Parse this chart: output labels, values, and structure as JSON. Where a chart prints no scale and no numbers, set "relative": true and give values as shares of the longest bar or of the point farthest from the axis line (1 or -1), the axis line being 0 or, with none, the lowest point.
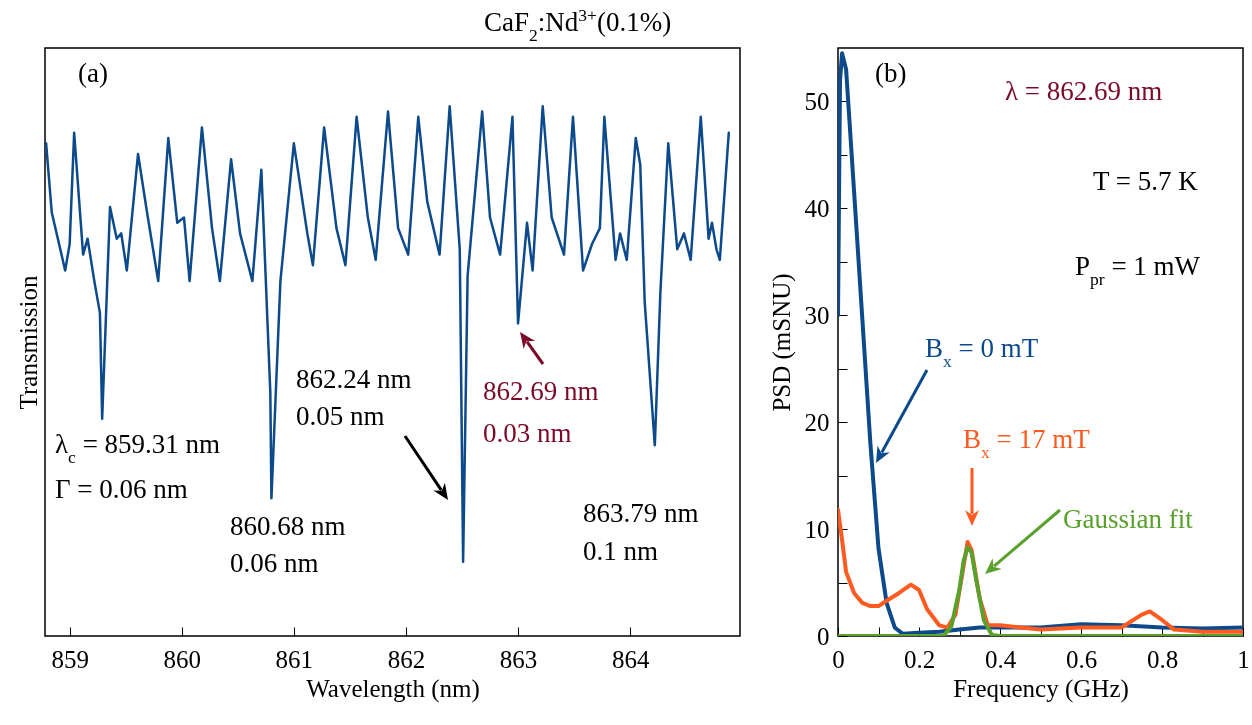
{
  "chart_data": [
    {
      "type": "line",
      "title": "CaF$_{2}$:Nd$^{3+}$(0.1%)",
      "xlabel": "Wavelength (nm)",
      "ylabel": "Transmission",
      "relative": true,
      "xlim": [
        858.78,
        864.98
      ],
      "xticks": [
        859,
        860,
        861,
        862,
        863,
        864
      ],
      "marker": "none",
      "line_style": "solid",
      "x": [
        858.79,
        858.84,
        858.96,
        859.0,
        859.04,
        859.12,
        859.16,
        859.22,
        859.27,
        859.29,
        859.36,
        859.42,
        859.46,
        859.51,
        859.61,
        859.69,
        859.79,
        859.88,
        859.96,
        860.02,
        860.07,
        860.18,
        860.27,
        860.34,
        860.44,
        860.52,
        860.63,
        860.71,
        860.79,
        860.8,
        860.88,
        861.0,
        861.12,
        861.17,
        861.27,
        861.38,
        861.46,
        861.56,
        861.66,
        861.73,
        861.84,
        861.93,
        862.02,
        862.11,
        862.19,
        862.3,
        862.39,
        862.48,
        862.51,
        862.55,
        862.68,
        862.75,
        862.84,
        862.95,
        863.0,
        863.08,
        863.13,
        863.22,
        863.3,
        863.41,
        863.49,
        863.58,
        863.66,
        863.73,
        863.77,
        863.87,
        863.91,
        863.97,
        864.05,
        864.09,
        864.13,
        864.22,
        864.27,
        864.34,
        864.42,
        864.48,
        864.54,
        864.63,
        864.7,
        864.73,
        864.77,
        864.8,
        864.88
      ],
      "series": [
        {
          "color": "#0d4a8c",
          "values": [
            0.93,
            0.8,
            0.69,
            0.74,
            0.95,
            0.72,
            0.75,
            0.67,
            0.61,
            0.41,
            0.81,
            0.75,
            0.76,
            0.69,
            0.91,
            0.8,
            0.67,
            0.94,
            0.78,
            0.79,
            0.67,
            0.96,
            0.77,
            0.67,
            0.9,
            0.76,
            0.67,
            0.88,
            0.46,
            0.26,
            0.67,
            0.93,
            0.76,
            0.7,
            0.96,
            0.77,
            0.7,
            0.98,
            0.79,
            0.71,
            0.99,
            0.77,
            0.72,
            0.98,
            0.82,
            0.72,
            1.0,
            0.73,
            0.14,
            0.68,
            0.99,
            0.79,
            0.72,
            0.98,
            0.59,
            0.78,
            0.69,
            1.0,
            0.79,
            0.72,
            0.98,
            0.69,
            0.74,
            0.77,
            0.98,
            0.71,
            0.76,
            0.71,
            0.94,
            0.89,
            0.63,
            0.36,
            0.65,
            0.93,
            0.73,
            0.76,
            0.71,
            0.98,
            0.75,
            0.78,
            0.73,
            0.71,
            0.95
          ]
        }
      ],
      "annotations": [
        "(a)",
        "λ$_{c}$ = 859.31 nm",
        "Γ = 0.06 nm",
        "860.68 nm",
        "0.06 nm",
        "862.24 nm",
        "0.05 nm",
        "862.69 nm",
        "0.03 nm",
        "863.79 nm",
        "0.1 nm"
      ]
    },
    {
      "type": "line",
      "xlabel": "Frequency (GHz)",
      "ylabel": "PSD (mSNU)",
      "xlim": [
        0,
        1
      ],
      "ylim": [
        0,
        55
      ],
      "xticks": [
        0,
        {
          "value": 0.1,
          "label": null
        },
        0.2,
        {
          "value": 0.3,
          "label": null
        },
        0.4,
        {
          "value": 0.5,
          "label": null
        },
        0.6,
        {
          "value": 0.7,
          "label": null
        },
        0.8,
        {
          "value": 0.9,
          "label": null
        },
        1
      ],
      "yticks": [
        0,
        {
          "value": 5,
          "label": null
        },
        10,
        {
          "value": 15,
          "label": null
        },
        20,
        {
          "value": 25,
          "label": null
        },
        30,
        {
          "value": 35,
          "label": null
        },
        40,
        {
          "value": 45,
          "label": null
        },
        50
      ],
      "marker": "none",
      "line_style": "solid",
      "series": [
        {
          "name": "B$_{x}$ = 0 mT",
          "color": "#0d4a8c",
          "x": [
            0,
            0.005,
            0.01,
            0.02,
            0.04,
            0.06,
            0.08,
            0.1,
            0.12,
            0.14,
            0.16,
            0.2,
            0.25,
            0.3,
            0.35,
            0.4,
            0.5,
            0.6,
            0.7,
            0.8,
            0.9,
            1.0
          ],
          "values": [
            30,
            52,
            54.5,
            53,
            41.4,
            29.7,
            18,
            8.2,
            3.1,
            0.8,
            0.2,
            0.3,
            0.4,
            0.6,
            0.8,
            0.8,
            0.8,
            1.1,
            1.0,
            0.8,
            0.7,
            0.8
          ]
        },
        {
          "name": "B$_{x}$ = 17 mT",
          "color": "#ff5a1f",
          "x": [
            0,
            0.01,
            0.02,
            0.04,
            0.06,
            0.08,
            0.1,
            0.12,
            0.15,
            0.18,
            0.2,
            0.22,
            0.25,
            0.27,
            0.29,
            0.31,
            0.32,
            0.33,
            0.35,
            0.37,
            0.4,
            0.5,
            0.6,
            0.7,
            0.75,
            0.77,
            0.8,
            0.83,
            0.9,
            1.0
          ],
          "values": [
            11.8,
            9,
            6,
            4,
            3.1,
            2.8,
            2.8,
            3.3,
            4,
            4.8,
            4.3,
            2.5,
            1,
            0.8,
            2,
            6.5,
            8.8,
            8,
            3.5,
            1,
            1,
            0.6,
            0.8,
            0.8,
            2,
            2.3,
            1.5,
            0.6,
            0.4,
            0.4
          ]
        },
        {
          "name": "Gaussian fit",
          "color": "#5aa02c",
          "x": [
            0,
            0.26,
            0.28,
            0.3,
            0.31,
            0.32,
            0.33,
            0.34,
            0.36,
            0.38,
            0.4,
            1.0
          ],
          "values": [
            0,
            0,
            0.9,
            4.4,
            7,
            8.3,
            7.8,
            5.5,
            1.5,
            0.1,
            0,
            0
          ]
        }
      ],
      "annotations": [
        "(b)",
        "λ = 862.69 nm",
        "T = 5.7 K",
        "P$_{pr}$ = 1 mW"
      ]
    }
  ]
}
